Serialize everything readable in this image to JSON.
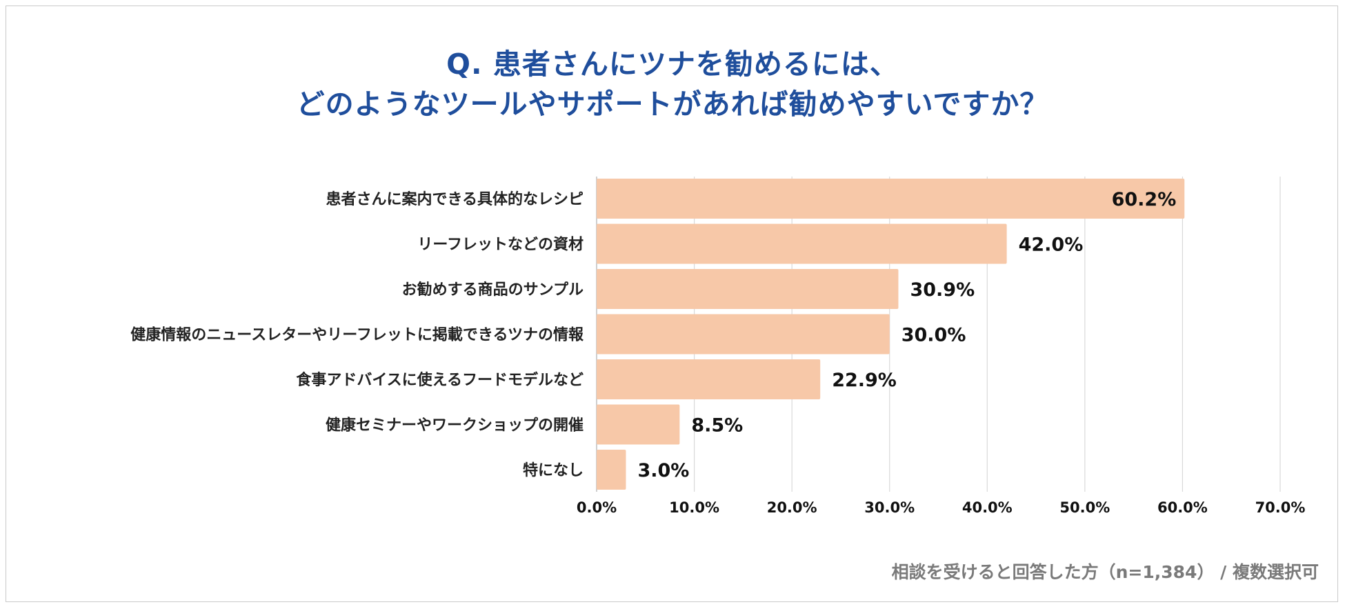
{
  "chart_data": {
    "type": "bar",
    "orientation": "horizontal",
    "title_lines": [
      "Q. 患者さんにツナを勧めるには、",
      "どのようなツールやサポートがあれば勧めやすいですか？"
    ],
    "categories": [
      "患者さんに案内できる具体的なレシピ",
      "リーフレットなどの資材",
      "お勧めする商品のサンプル",
      "健康情報のニュースレターやリーフレットに掲載できるツナの情報",
      "食事アドバイスに使えるフードモデルなど",
      "健康セミナーやワークショップの開催",
      "特になし"
    ],
    "values": [
      60.2,
      42.0,
      30.9,
      30.0,
      22.9,
      8.5,
      3.0
    ],
    "value_labels": [
      "60.2%",
      "42.0%",
      "30.9%",
      "30.0%",
      "22.9%",
      "8.5%",
      "3.0%"
    ],
    "xlim": [
      0,
      70
    ],
    "xticks": [
      0,
      10,
      20,
      30,
      40,
      50,
      60,
      70
    ],
    "xtick_labels": [
      "0.0%",
      "10.0%",
      "20.0%",
      "30.0%",
      "40.0%",
      "50.0%",
      "60.0%",
      "70.0%"
    ],
    "grid": "vertical",
    "bar_color": "#f7c8a8",
    "title_color": "#1f4e9c",
    "footnote": "相談を受けると回答した方（n=1,384） / 複数選択可"
  }
}
